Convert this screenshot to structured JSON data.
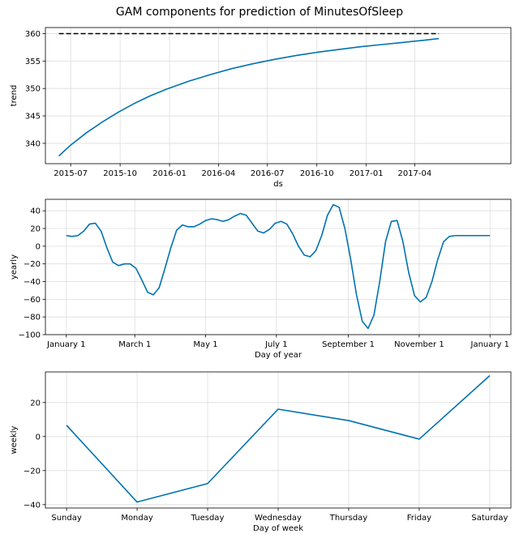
{
  "title": "GAM components for prediction of MinutesOfSleep",
  "colors": {
    "line": "#0072B2",
    "cap": "#000000",
    "grid": "#dddddd"
  },
  "chart_data": [
    {
      "type": "line",
      "name": "trend",
      "title": "",
      "xlabel": "ds",
      "ylabel": "trend",
      "x_ticks": [
        "2015-07",
        "2015-10",
        "2016-01",
        "2016-04",
        "2016-07",
        "2016-10",
        "2017-01",
        "2017-04"
      ],
      "x_tick_values": [
        181,
        273,
        365,
        456,
        547,
        639,
        731,
        821
      ],
      "xlim": [
        134,
        1000
      ],
      "ylim": [
        336.3,
        361.1
      ],
      "y_ticks": [
        340,
        345,
        350,
        355,
        360
      ],
      "x_domain": "days since 2015-01-01",
      "series": [
        {
          "name": "trend",
          "x": [
            159,
            180,
            210,
            240,
            270,
            300,
            330,
            360,
            400,
            440,
            480,
            520,
            560,
            600,
            640,
            680,
            720,
            760,
            800,
            840,
            866
          ],
          "values": [
            337.7,
            339.6,
            341.9,
            343.9,
            345.7,
            347.3,
            348.7,
            349.9,
            351.3,
            352.5,
            353.6,
            354.5,
            355.3,
            356.0,
            356.6,
            357.1,
            357.6,
            358.0,
            358.4,
            358.8,
            359.1
          ]
        },
        {
          "name": "cap",
          "style": "dashed",
          "x": [
            159,
            866
          ],
          "values": [
            360,
            360
          ]
        }
      ]
    },
    {
      "type": "line",
      "name": "yearly",
      "xlabel": "Day of year",
      "ylabel": "yearly",
      "x_ticks": [
        "January 1",
        "March 1",
        "May 1",
        "July 1",
        "September 1",
        "November 1",
        "January 1"
      ],
      "x_tick_values": [
        0,
        59,
        120,
        181,
        243,
        304,
        365
      ],
      "xlim": [
        -18,
        383
      ],
      "ylim": [
        -100,
        53
      ],
      "y_ticks": [
        -100,
        -80,
        -60,
        -40,
        -20,
        0,
        20,
        40
      ],
      "series": [
        {
          "name": "yearly",
          "x": [
            0,
            5,
            10,
            15,
            20,
            25,
            30,
            35,
            40,
            45,
            50,
            55,
            60,
            65,
            70,
            75,
            80,
            85,
            90,
            95,
            100,
            105,
            110,
            115,
            120,
            125,
            130,
            135,
            140,
            145,
            150,
            155,
            160,
            165,
            170,
            175,
            180,
            185,
            190,
            195,
            200,
            205,
            210,
            215,
            220,
            225,
            230,
            235,
            240,
            245,
            250,
            255,
            260,
            265,
            270,
            275,
            280,
            285,
            290,
            295,
            300,
            305,
            310,
            315,
            320,
            325,
            330,
            335,
            340,
            345,
            350,
            355,
            360,
            365
          ],
          "values": [
            12,
            11,
            12,
            17,
            25,
            26,
            17,
            -2,
            -18,
            -22,
            -20,
            -20,
            -25,
            -38,
            -52,
            -55,
            -47,
            -25,
            -2,
            18,
            24,
            22,
            22,
            25,
            29,
            31,
            30,
            28,
            30,
            34,
            37,
            35,
            26,
            17,
            15,
            19,
            26,
            28,
            25,
            14,
            0,
            -10,
            -12,
            -5,
            12,
            35,
            47,
            44,
            20,
            -15,
            -55,
            -85,
            -93,
            -78,
            -40,
            5,
            28,
            29,
            5,
            -30,
            -56,
            -63,
            -58,
            -40,
            -15,
            5,
            11,
            12,
            12,
            12,
            12,
            12,
            12,
            12
          ]
        }
      ]
    },
    {
      "type": "line",
      "name": "weekly",
      "xlabel": "Day of week",
      "ylabel": "weekly",
      "categories": [
        "Sunday",
        "Monday",
        "Tuesday",
        "Wednesday",
        "Thursday",
        "Friday",
        "Saturday"
      ],
      "xlim": [
        -0.3,
        6.3
      ],
      "ylim": [
        -42,
        38
      ],
      "y_ticks": [
        -40,
        -20,
        0,
        20
      ],
      "series": [
        {
          "name": "weekly",
          "values": [
            6.6,
            -38.5,
            -27.6,
            16.1,
            9.4,
            -1.5,
            35.8
          ]
        }
      ]
    }
  ]
}
